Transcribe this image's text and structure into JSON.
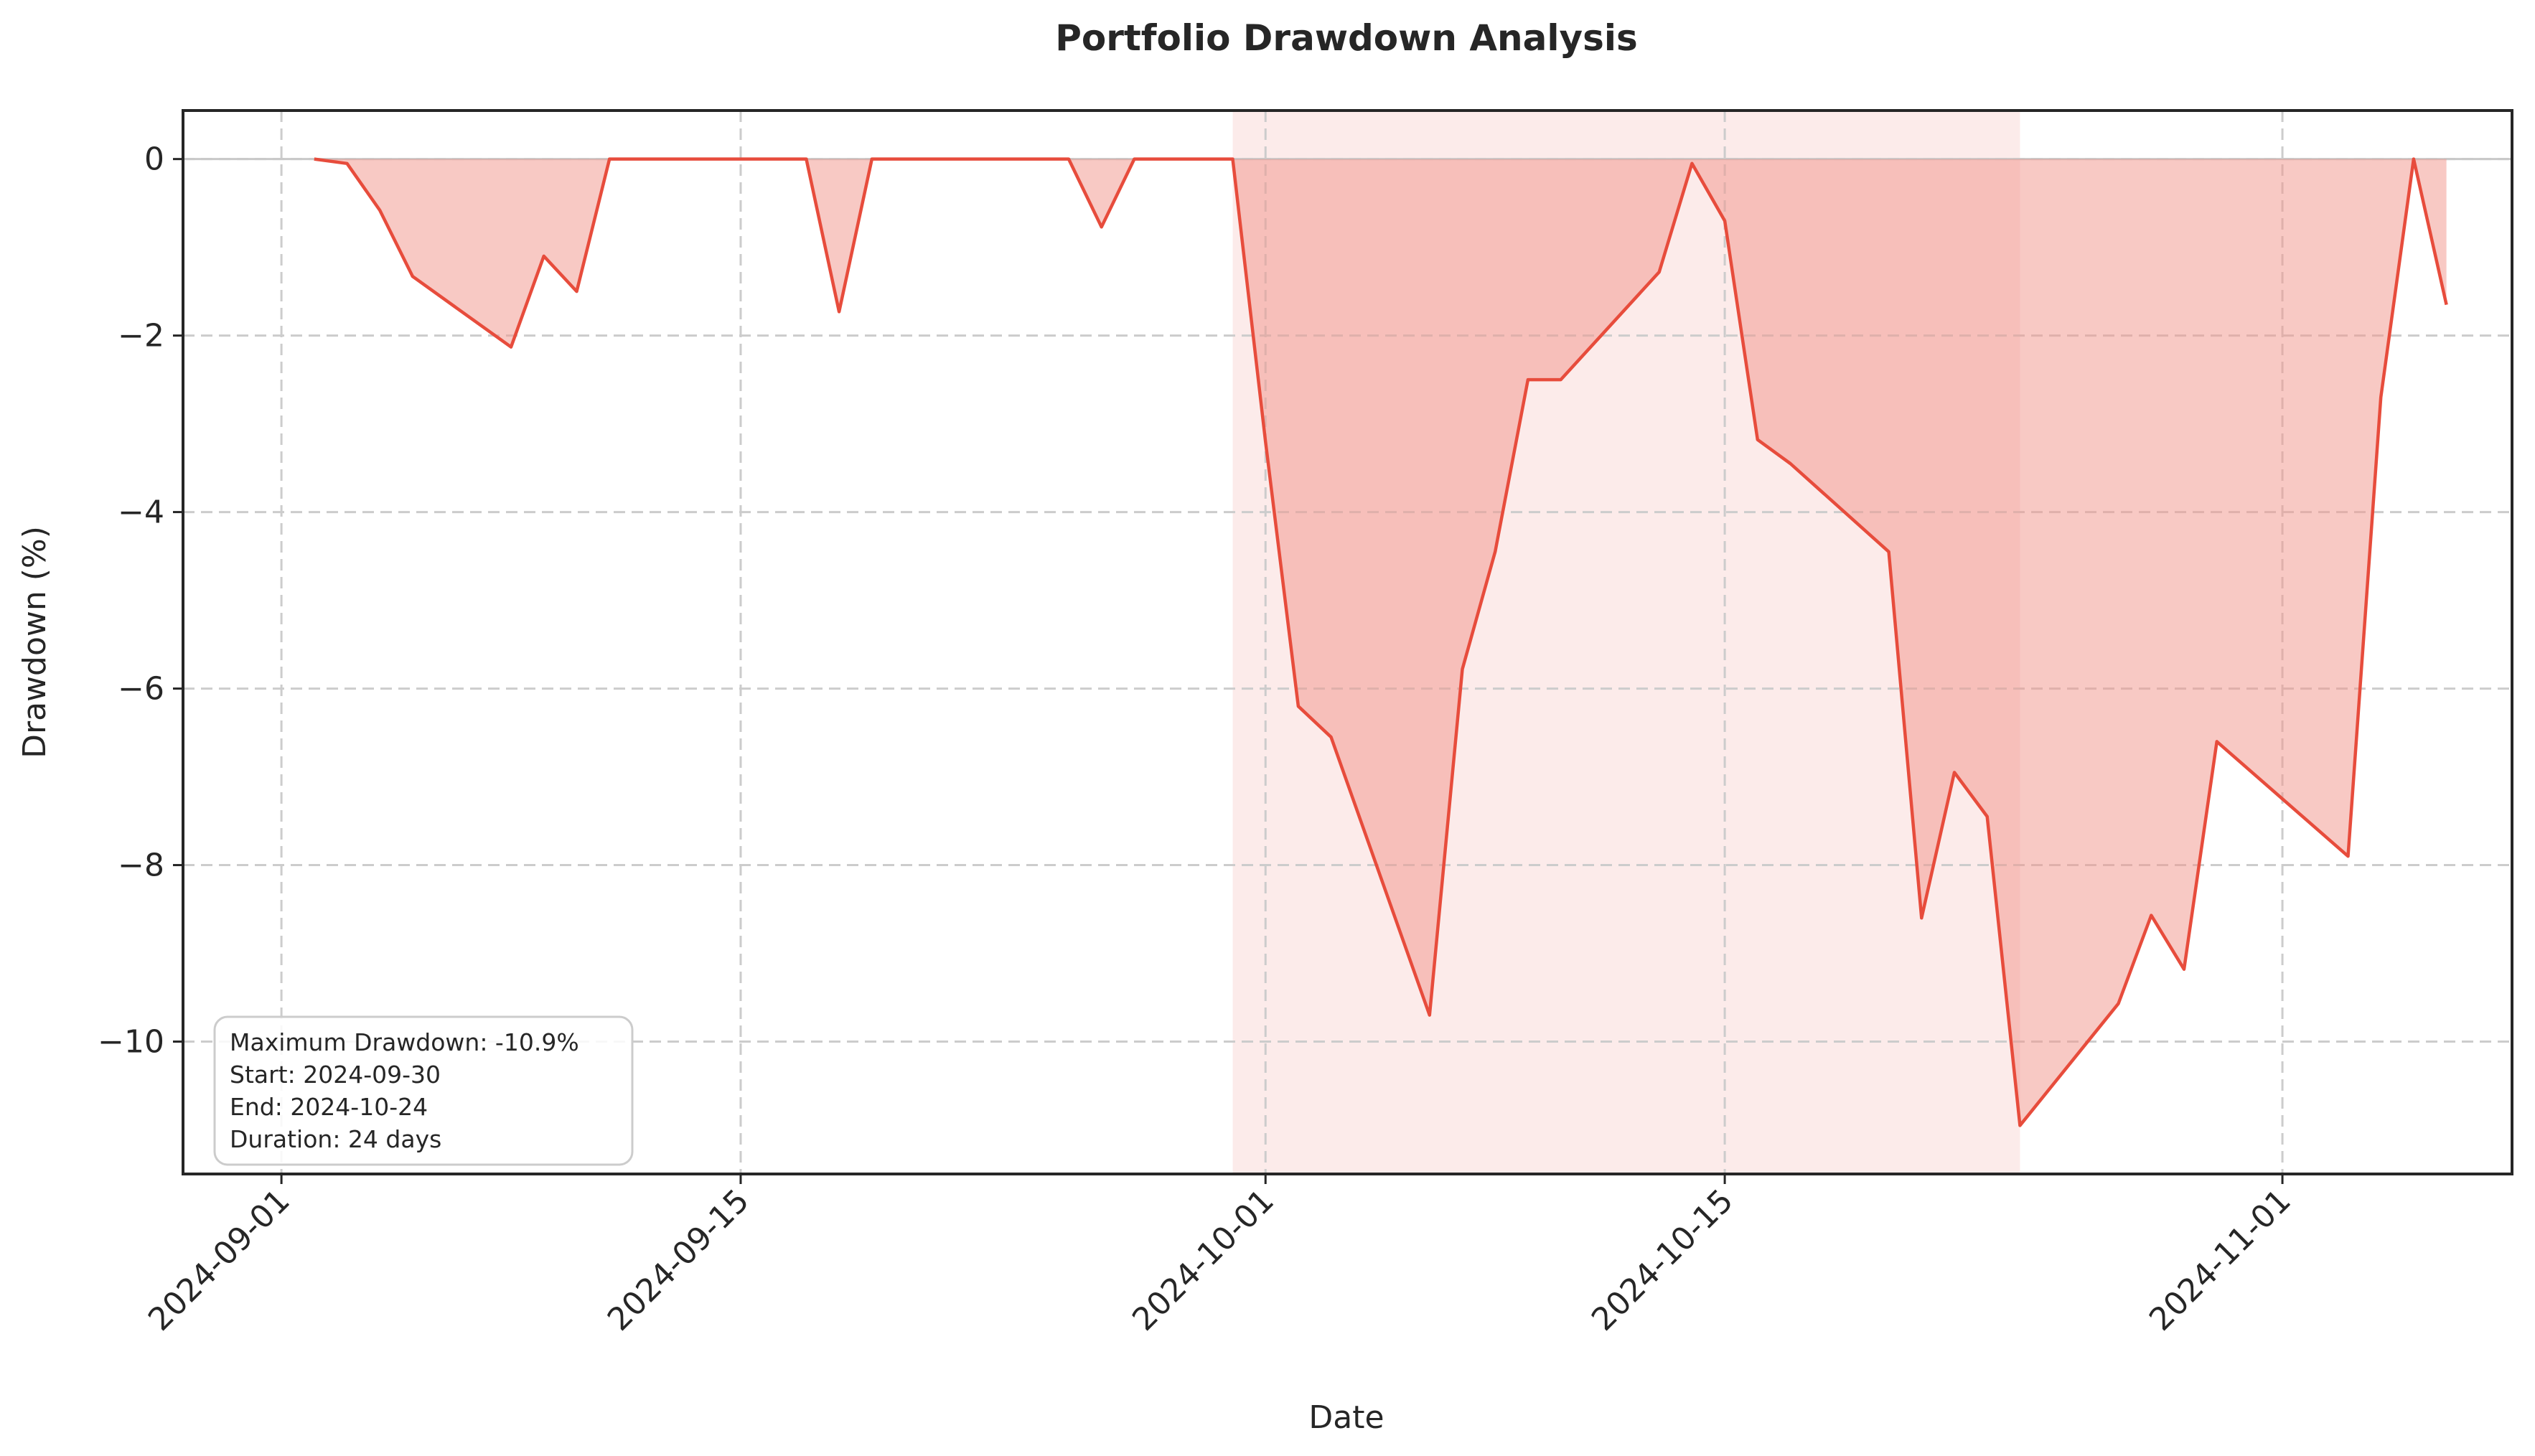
{
  "chart_data": {
    "type": "area",
    "title": "Portfolio Drawdown Analysis",
    "xlabel": "Date",
    "ylabel": "Drawdown (%)",
    "x_ticks": [
      "2024-09-01",
      "2024-09-15",
      "2024-10-01",
      "2024-10-15",
      "2024-11-01"
    ],
    "y_ticks": [
      0,
      -2,
      -4,
      -6,
      -8,
      -10
    ],
    "y_tick_labels": [
      "0",
      "−2",
      "−4",
      "−6",
      "−8",
      "−10"
    ],
    "ylim": [
      -11.5,
      0.55
    ],
    "xlim": [
      "2024-08-29",
      "2024-11-08"
    ],
    "grid": true,
    "line_color": "#e74c3c",
    "fill_color": "#f1948a",
    "highlight_color": "#fadbd8",
    "series": [
      {
        "x": [
          "2024-09-02",
          "2024-09-03",
          "2024-09-04",
          "2024-09-05",
          "2024-09-08",
          "2024-09-09",
          "2024-09-10",
          "2024-09-11",
          "2024-09-17",
          "2024-09-18",
          "2024-09-19",
          "2024-09-25",
          "2024-09-26",
          "2024-09-27",
          "2024-09-30",
          "2024-10-01",
          "2024-10-02",
          "2024-10-03",
          "2024-10-06",
          "2024-10-07",
          "2024-10-08",
          "2024-10-09",
          "2024-10-10",
          "2024-10-13",
          "2024-10-14",
          "2024-10-15",
          "2024-10-16",
          "2024-10-17",
          "2024-10-20",
          "2024-10-21",
          "2024-10-22",
          "2024-10-23",
          "2024-10-24",
          "2024-10-27",
          "2024-10-28",
          "2024-10-29",
          "2024-10-30",
          "2024-11-03",
          "2024-11-04",
          "2024-11-05",
          "2024-11-06"
        ],
        "values": [
          0,
          -0.05,
          -0.58,
          -1.33,
          -2.13,
          -1.1,
          -1.5,
          0,
          0,
          -1.73,
          0,
          0,
          -0.77,
          0,
          0,
          -3.2,
          -6.2,
          -6.55,
          -9.7,
          -5.78,
          -4.45,
          -2.5,
          -2.5,
          -1.28,
          -0.05,
          -0.7,
          -3.18,
          -3.45,
          -4.45,
          -8.6,
          -6.95,
          -7.45,
          -10.95,
          -9.57,
          -8.57,
          -9.18,
          -6.6,
          -7.9,
          -2.7,
          0,
          -1.65
        ]
      }
    ],
    "max_drawdown_period": {
      "start": "2024-09-30",
      "end": "2024-10-24"
    }
  },
  "annotation": {
    "line1": "Maximum Drawdown: -10.9%",
    "line2": "Start: 2024-09-30",
    "line3": "End: 2024-10-24",
    "line4": "Duration: 24 days"
  }
}
